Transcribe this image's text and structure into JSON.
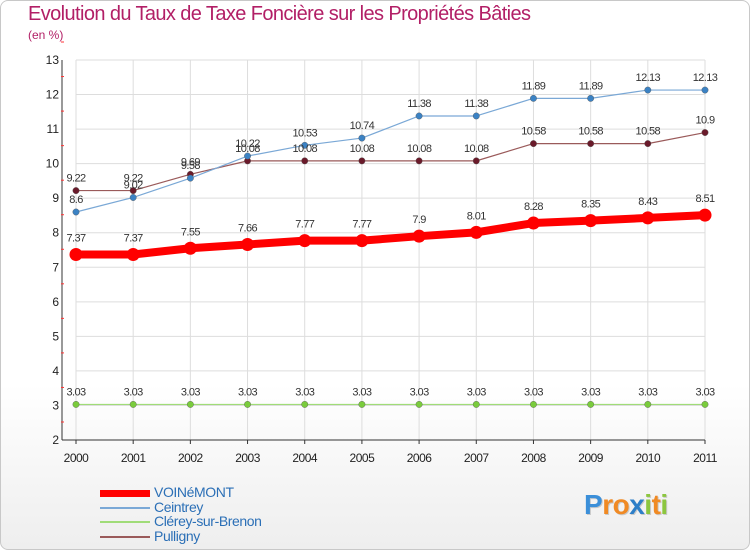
{
  "title": "Evolution du Taux de Taxe Foncière sur les Propriétés Bâties",
  "subtitle": "(en %)",
  "chart_data": {
    "type": "line",
    "title": "Evolution du Taux de Taxe Foncière sur les Propriétés Bâties",
    "ylabel": "(en %)",
    "xlabel": "",
    "categories": [
      "2000",
      "2001",
      "2002",
      "2003",
      "2004",
      "2005",
      "2006",
      "2007",
      "2008",
      "2009",
      "2010",
      "2011"
    ],
    "ylim": [
      2,
      13
    ],
    "yticks": [
      2,
      3,
      4,
      5,
      6,
      7,
      8,
      9,
      10,
      11,
      12,
      13
    ],
    "grid": true,
    "legend_position": "bottom-left",
    "series": [
      {
        "name": "VOINéMONT",
        "color": "#ff0000",
        "marker": "#ff0000",
        "width": 8,
        "values": [
          7.37,
          7.37,
          7.55,
          7.66,
          7.77,
          7.77,
          7.9,
          8.01,
          8.28,
          8.35,
          8.43,
          8.51
        ],
        "labels": [
          "7.37",
          "7.37",
          "7.55",
          "7.66",
          "7.77",
          "7.77",
          "7.9",
          "8.01",
          "8.28",
          "8.35",
          "8.43",
          "8.51"
        ]
      },
      {
        "name": "Ceintrey",
        "color": "#7aa8d6",
        "marker": "#3b82c4",
        "width": 1.2,
        "values": [
          8.6,
          9.02,
          9.58,
          10.22,
          10.53,
          10.74,
          11.38,
          11.38,
          11.89,
          11.89,
          12.13,
          12.13
        ],
        "labels": [
          "8.6",
          "9.02",
          "9.58",
          "10.22",
          "10.53",
          "10.74",
          "11.38",
          "11.38",
          "11.89",
          "11.89",
          "12.13",
          "12.13"
        ]
      },
      {
        "name": "Clérey-sur-Brenon",
        "color": "#a0dc78",
        "marker": "#7acc3c",
        "width": 1.2,
        "values": [
          3.03,
          3.03,
          3.03,
          3.03,
          3.03,
          3.03,
          3.03,
          3.03,
          3.03,
          3.03,
          3.03,
          3.03
        ],
        "labels": [
          "3.03",
          "3.03",
          "3.03",
          "3.03",
          "3.03",
          "3.03",
          "3.03",
          "3.03",
          "3.03",
          "3.03",
          "3.03",
          "3.03"
        ]
      },
      {
        "name": "Pulligny",
        "color": "#9a5a5a",
        "marker": "#6a1a2a",
        "width": 1.2,
        "values": [
          9.22,
          9.22,
          9.69,
          10.08,
          10.08,
          10.08,
          10.08,
          10.08,
          10.58,
          10.58,
          10.58,
          10.9
        ],
        "labels": [
          "9.22",
          "9.22",
          "9.69",
          "10.08",
          "10.08",
          "10.08",
          "10.08",
          "10.08",
          "10.58",
          "10.58",
          "10.58",
          "10.9"
        ]
      }
    ]
  },
  "legend": [
    {
      "label": "VOINéMONT",
      "color": "#ff0000"
    },
    {
      "label": "Ceintrey",
      "color": "#7aa8d6"
    },
    {
      "label": "Clérey-sur-Brenon",
      "color": "#a0dc78"
    },
    {
      "label": "Pulligny",
      "color": "#9a5a5a"
    }
  ],
  "logo": {
    "letters": [
      "P",
      "r",
      "o",
      "x",
      "i",
      "t",
      "i"
    ],
    "colors": [
      "#3b8fd9",
      "#f08a24",
      "#f08a24",
      "#2d7fc8",
      "#8cc63f",
      "#f08a24",
      "#8cc63f"
    ]
  }
}
